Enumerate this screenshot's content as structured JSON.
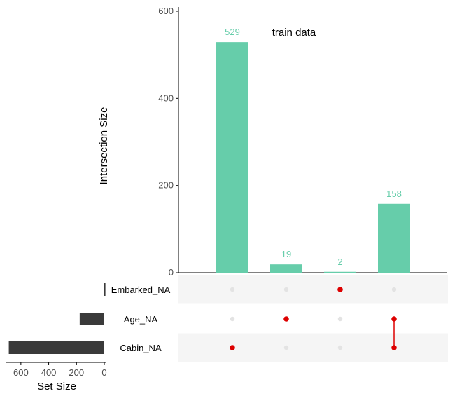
{
  "chart_data": {
    "type": "bar",
    "variant": "upset",
    "title": "train data",
    "ylabel": "Intersection Size",
    "ylim": [
      0,
      600
    ],
    "yticks": [
      0,
      200,
      400,
      600
    ],
    "bar_color": "#66cdaa",
    "dot_active_color": "#dd0000",
    "dot_inactive_color": "#e3e3e3",
    "set_bar_color": "#3a3a3a",
    "sets": [
      "Embarked_NA",
      "Age_NA",
      "Cabin_NA"
    ],
    "intersections": [
      {
        "sets": [
          "Cabin_NA"
        ],
        "value": 529,
        "label": "529"
      },
      {
        "sets": [
          "Age_NA"
        ],
        "value": 19,
        "label": "19"
      },
      {
        "sets": [
          "Embarked_NA"
        ],
        "value": 2,
        "label": "2"
      },
      {
        "sets": [
          "Age_NA",
          "Cabin_NA"
        ],
        "value": 158,
        "label": "158"
      }
    ],
    "set_sizes": {
      "xlabel": "Set Size",
      "xlim": [
        0,
        700
      ],
      "xticks": [
        600,
        400,
        200,
        0
      ],
      "values": {
        "Embarked_NA": 2,
        "Age_NA": 177,
        "Cabin_NA": 687
      }
    }
  }
}
